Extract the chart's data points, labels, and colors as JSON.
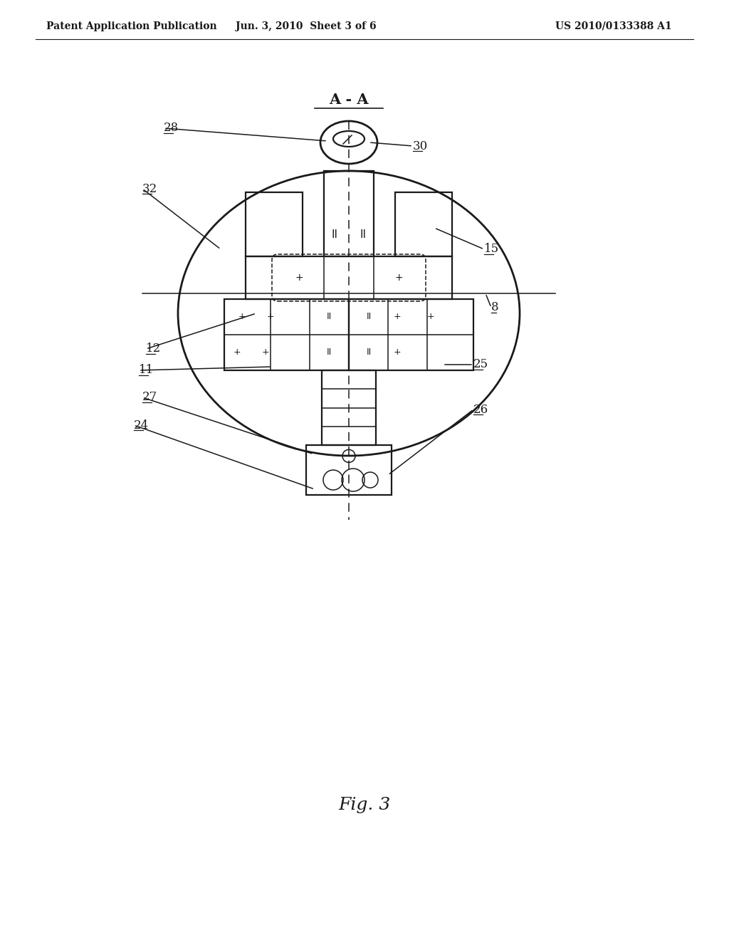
{
  "header_left": "Patent Application Publication",
  "header_center": "Jun. 3, 2010  Sheet 3 of 6",
  "header_right": "US 2010/0133388 A1",
  "bg_color": "#ffffff",
  "line_color": "#1a1a1a",
  "fig_label": "Fig. 3",
  "section_label": "A - A"
}
